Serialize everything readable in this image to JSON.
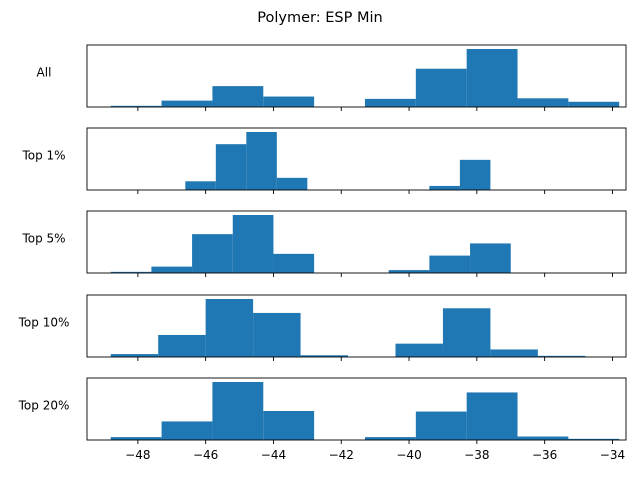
{
  "title": "Polymer: ESP Min",
  "chart_data": {
    "type": "bar",
    "subtype": "stacked histograms sharing x-axis",
    "title": "Polymer: ESP Min",
    "xlabel": "",
    "ylabel": "",
    "xlim": [
      -49.5,
      -33.6
    ],
    "xticks": [
      "−48",
      "−46",
      "−44",
      "−42",
      "−40",
      "−38",
      "−36",
      "−34"
    ],
    "xtick_values": [
      -48,
      -46,
      -44,
      -42,
      -40,
      -38,
      -36,
      -34
    ],
    "bar_color": "#1f77b4",
    "grid": false,
    "panels": [
      {
        "label": "All",
        "bins": [
          {
            "x0": -48.8,
            "x1": -47.3,
            "v": 2
          },
          {
            "x0": -47.3,
            "x1": -45.8,
            "v": 11
          },
          {
            "x0": -45.8,
            "x1": -44.3,
            "v": 36
          },
          {
            "x0": -44.3,
            "x1": -42.8,
            "v": 18
          },
          {
            "x0": -41.3,
            "x1": -39.8,
            "v": 14
          },
          {
            "x0": -39.8,
            "x1": -38.3,
            "v": 66
          },
          {
            "x0": -38.3,
            "x1": -36.8,
            "v": 100
          },
          {
            "x0": -36.8,
            "x1": -35.3,
            "v": 15
          },
          {
            "x0": -35.3,
            "x1": -33.8,
            "v": 9
          }
        ]
      },
      {
        "label": "Top 1%",
        "bins": [
          {
            "x0": -46.6,
            "x1": -45.7,
            "v": 15
          },
          {
            "x0": -45.7,
            "x1": -44.8,
            "v": 79
          },
          {
            "x0": -44.8,
            "x1": -43.9,
            "v": 100
          },
          {
            "x0": -43.9,
            "x1": -43.0,
            "v": 21
          },
          {
            "x0": -39.4,
            "x1": -38.5,
            "v": 7
          },
          {
            "x0": -38.5,
            "x1": -37.6,
            "v": 52
          }
        ]
      },
      {
        "label": "Top 5%",
        "bins": [
          {
            "x0": -48.8,
            "x1": -47.6,
            "v": 2
          },
          {
            "x0": -47.6,
            "x1": -46.4,
            "v": 11
          },
          {
            "x0": -46.4,
            "x1": -45.2,
            "v": 67
          },
          {
            "x0": -45.2,
            "x1": -44.0,
            "v": 100
          },
          {
            "x0": -44.0,
            "x1": -42.8,
            "v": 33
          },
          {
            "x0": -40.6,
            "x1": -39.4,
            "v": 5
          },
          {
            "x0": -39.4,
            "x1": -38.2,
            "v": 30
          },
          {
            "x0": -38.2,
            "x1": -37.0,
            "v": 51
          }
        ]
      },
      {
        "label": "Top 10%",
        "bins": [
          {
            "x0": -48.8,
            "x1": -47.4,
            "v": 5
          },
          {
            "x0": -47.4,
            "x1": -46.0,
            "v": 38
          },
          {
            "x0": -46.0,
            "x1": -44.6,
            "v": 100
          },
          {
            "x0": -44.6,
            "x1": -43.2,
            "v": 76
          },
          {
            "x0": -43.2,
            "x1": -41.8,
            "v": 3
          },
          {
            "x0": -40.4,
            "x1": -39.0,
            "v": 23
          },
          {
            "x0": -39.0,
            "x1": -37.6,
            "v": 84
          },
          {
            "x0": -37.6,
            "x1": -36.2,
            "v": 13
          },
          {
            "x0": -36.2,
            "x1": -34.8,
            "v": 2
          }
        ]
      },
      {
        "label": "Top 20%",
        "bins": [
          {
            "x0": -48.8,
            "x1": -47.3,
            "v": 5
          },
          {
            "x0": -47.3,
            "x1": -45.8,
            "v": 32
          },
          {
            "x0": -45.8,
            "x1": -44.3,
            "v": 100
          },
          {
            "x0": -44.3,
            "x1": -42.8,
            "v": 50
          },
          {
            "x0": -41.3,
            "x1": -39.8,
            "v": 5
          },
          {
            "x0": -39.8,
            "x1": -38.3,
            "v": 49
          },
          {
            "x0": -38.3,
            "x1": -36.8,
            "v": 82
          },
          {
            "x0": -36.8,
            "x1": -35.3,
            "v": 6
          },
          {
            "x0": -35.3,
            "x1": -33.8,
            "v": 2
          }
        ]
      }
    ]
  }
}
